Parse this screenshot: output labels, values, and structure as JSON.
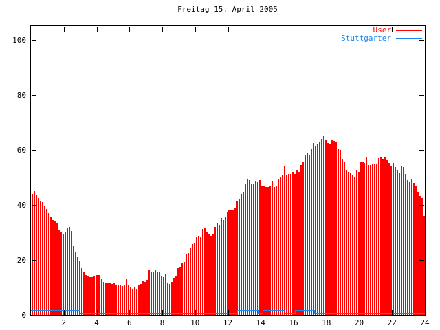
{
  "title": "Freitag 15. April 2005",
  "legend": {
    "items": [
      {
        "label": "User",
        "color": "#ff0000"
      },
      {
        "label": "Stuttgarter",
        "color": "#1c86ee"
      }
    ]
  },
  "colors": {
    "axis": "#000000",
    "background": "#ffffff",
    "user_red": "#ff0000",
    "stuttgarter_blue": "#1c86ee"
  },
  "chart_data": {
    "type": "bar",
    "render_style": "gnuplot impulses (User) + thin step line near zero (Stuttgarter)",
    "title": "Freitag 15. April 2005",
    "xlabel": "",
    "ylabel": "",
    "x_unit": "hour of day",
    "xlim": [
      0,
      24
    ],
    "ylim": [
      0,
      105
    ],
    "x_ticks": [
      2,
      4,
      6,
      8,
      10,
      12,
      14,
      16,
      18,
      20,
      22,
      24
    ],
    "y_ticks": [
      0,
      20,
      40,
      60,
      80,
      100
    ],
    "grid": false,
    "tick_mirroring": "ticks mirrored on top and right borders",
    "legend_position": "top-right inside plot",
    "series": [
      {
        "name": "User",
        "style": "impulses",
        "color": "#ff0000",
        "x_start": 0.0,
        "x_step": 0.125,
        "values": [
          44,
          45,
          43.5,
          42.5,
          41.5,
          41,
          39.5,
          38.5,
          37,
          35.5,
          34.5,
          34,
          33.5,
          31,
          30,
          29.5,
          30,
          31.5,
          32,
          30.5,
          25,
          23,
          21,
          19.5,
          17,
          15.5,
          14.5,
          14,
          13.8,
          13.8,
          14,
          14.3,
          14.5,
          14.5,
          13,
          12,
          11.5,
          11.5,
          11.4,
          11.3,
          11.5,
          11,
          11,
          11,
          10.6,
          10.8,
          13,
          11,
          10,
          9.5,
          10,
          9.5,
          10.8,
          11.2,
          12.4,
          12,
          12.8,
          16.6,
          15.8,
          15.8,
          16.2,
          15.8,
          15.4,
          14.1,
          13.7,
          15,
          11.6,
          11.2,
          12,
          13.3,
          14.1,
          17,
          17.5,
          18.7,
          19.2,
          22,
          22.5,
          24.6,
          25.8,
          26.2,
          28.3,
          28.7,
          28.3,
          31.2,
          31.6,
          30,
          29.6,
          28.5,
          29.5,
          32,
          33.3,
          32.8,
          35.3,
          34.5,
          35.8,
          37.4,
          37.8,
          38,
          38.3,
          39.1,
          41.6,
          42,
          44.1,
          44.5,
          47.4,
          49.5,
          49.1,
          47.8,
          47.8,
          48.7,
          48.3,
          49.1,
          47,
          47,
          46.6,
          46.6,
          47,
          48.7,
          46.6,
          47,
          49.5,
          50,
          50.8,
          54,
          50.8,
          51.2,
          51.2,
          52,
          51.2,
          52.4,
          52,
          54.5,
          55.5,
          58.3,
          59.1,
          58.3,
          60.3,
          62.4,
          61.2,
          62,
          62.8,
          64.1,
          64.9,
          63.7,
          62.4,
          62,
          63.7,
          63.3,
          62.8,
          60.3,
          59.9,
          56.6,
          55.8,
          52.8,
          52,
          51.6,
          50.8,
          50.3,
          52.8,
          52,
          54.5,
          55.8,
          55.3,
          57.4,
          54.5,
          54.5,
          54.9,
          55,
          54.9,
          57,
          57.4,
          56.6,
          57.4,
          56.2,
          55.3,
          54.1,
          55.3,
          53.7,
          52.8,
          51.6,
          54.1,
          53.7,
          51.2,
          49.1,
          48.3,
          49.5,
          47.9,
          47,
          44.5,
          43.3,
          42.4,
          36
        ]
      },
      {
        "name": "Stuttgarter",
        "style": "steps",
        "color": "#1c86ee",
        "segments": [
          {
            "from": 0.0,
            "to": 2.97,
            "value": 1.5
          },
          {
            "from": 2.97,
            "to": 12.55,
            "value": 0.5
          },
          {
            "from": 12.55,
            "to": 13.85,
            "value": 1.5
          },
          {
            "from": 13.85,
            "to": 14.1,
            "value": 0.5
          },
          {
            "from": 14.1,
            "to": 15.45,
            "value": 1.5
          },
          {
            "from": 15.45,
            "to": 16.1,
            "value": 0.5
          },
          {
            "from": 16.1,
            "to": 17.25,
            "value": 1.5
          },
          {
            "from": 17.25,
            "to": 24.0,
            "value": 0.5
          }
        ]
      }
    ],
    "solid_red_bands": [
      {
        "start": 3.98,
        "end": 4.17,
        "value": 14.5
      },
      {
        "start": 12.02,
        "end": 12.2,
        "value": 38
      },
      {
        "start": 20.05,
        "end": 20.27,
        "value": 55.5
      }
    ]
  }
}
